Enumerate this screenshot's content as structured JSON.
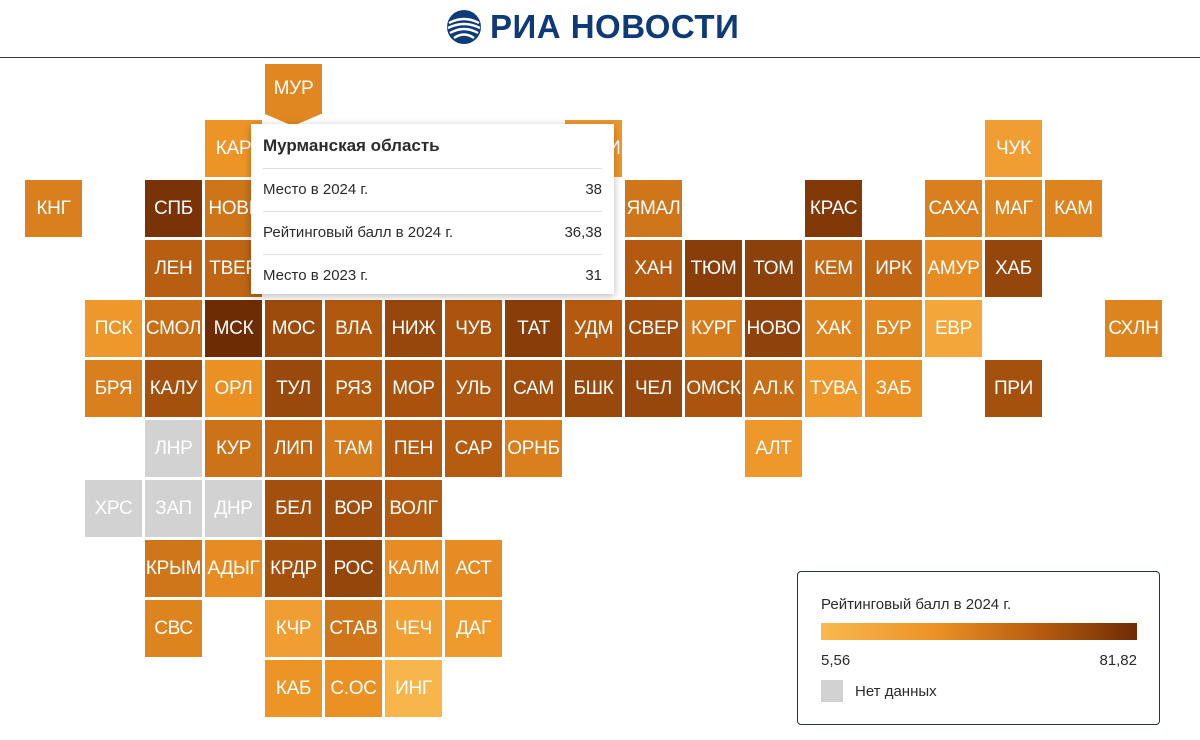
{
  "header": {
    "logo_text": "РИА НОВОСТИ"
  },
  "colors": {
    "scale": [
      "#f8b94f",
      "#ed9325",
      "#b55b10",
      "#6e2c05"
    ],
    "no_data": "#d2d2d2",
    "brand": "#0f3a78"
  },
  "regions": [
    {
      "code": "МУР",
      "score": 36.38,
      "row": 0,
      "col": 4
    },
    {
      "code": "КАР",
      "score": 30,
      "row": 1,
      "col": 3
    },
    {
      "code": "КОМИ",
      "score": 28,
      "row": 1,
      "col": 9
    },
    {
      "code": "ЧУК",
      "score": 24,
      "row": 1,
      "col": 16
    },
    {
      "code": "КНГ",
      "score": 40,
      "row": 2,
      "col": 0
    },
    {
      "code": "СПБ",
      "score": 78,
      "row": 2,
      "col": 2
    },
    {
      "code": "НОВГ",
      "score": 45,
      "row": 2,
      "col": 3
    },
    {
      "code": "ЯМАЛ",
      "score": 44,
      "row": 2,
      "col": 10
    },
    {
      "code": "КРАС",
      "score": 75,
      "row": 2,
      "col": 13
    },
    {
      "code": "САХА",
      "score": 40,
      "row": 2,
      "col": 15
    },
    {
      "code": "МАГ",
      "score": 37,
      "row": 2,
      "col": 16
    },
    {
      "code": "КАМ",
      "score": 38,
      "row": 2,
      "col": 17
    },
    {
      "code": "ЛЕН",
      "score": 55,
      "row": 3,
      "col": 2
    },
    {
      "code": "ТВЕР",
      "score": 52,
      "row": 3,
      "col": 3
    },
    {
      "code": "ХАН",
      "score": 57,
      "row": 3,
      "col": 10
    },
    {
      "code": "ТЮМ",
      "score": 72,
      "row": 3,
      "col": 11
    },
    {
      "code": "ТОМ",
      "score": 71,
      "row": 3,
      "col": 12
    },
    {
      "code": "КЕМ",
      "score": 50,
      "row": 3,
      "col": 13
    },
    {
      "code": "ИРК",
      "score": 52,
      "row": 3,
      "col": 14
    },
    {
      "code": "АМУР",
      "score": 34,
      "row": 3,
      "col": 15
    },
    {
      "code": "ХАБ",
      "score": 68,
      "row": 3,
      "col": 16
    },
    {
      "code": "ПСК",
      "score": 28,
      "row": 4,
      "col": 1
    },
    {
      "code": "СМОЛ",
      "score": 48,
      "row": 4,
      "col": 2
    },
    {
      "code": "МСК",
      "score": 81.82,
      "row": 4,
      "col": 3
    },
    {
      "code": "МОС",
      "score": 65,
      "row": 4,
      "col": 4
    },
    {
      "code": "ВЛА",
      "score": 58,
      "row": 4,
      "col": 5
    },
    {
      "code": "НИЖ",
      "score": 67,
      "row": 4,
      "col": 6
    },
    {
      "code": "ЧУВ",
      "score": 60,
      "row": 4,
      "col": 7
    },
    {
      "code": "ТАТ",
      "score": 72,
      "row": 4,
      "col": 8
    },
    {
      "code": "УДМ",
      "score": 57,
      "row": 4,
      "col": 9
    },
    {
      "code": "СВЕР",
      "score": 64,
      "row": 4,
      "col": 10
    },
    {
      "code": "КУРГ",
      "score": 42,
      "row": 4,
      "col": 11
    },
    {
      "code": "НОВО",
      "score": 70,
      "row": 4,
      "col": 12
    },
    {
      "code": "ХАК",
      "score": 38,
      "row": 4,
      "col": 13
    },
    {
      "code": "БУР",
      "score": 36,
      "row": 4,
      "col": 14
    },
    {
      "code": "ЕВР",
      "score": 18,
      "row": 4,
      "col": 15
    },
    {
      "code": "СХЛН",
      "score": 38,
      "row": 4,
      "col": 18
    },
    {
      "code": "БРЯ",
      "score": 40,
      "row": 5,
      "col": 1
    },
    {
      "code": "КАЛУ",
      "score": 62,
      "row": 5,
      "col": 2
    },
    {
      "code": "ОРЛ",
      "score": 32,
      "row": 5,
      "col": 3
    },
    {
      "code": "ТУЛ",
      "score": 66,
      "row": 5,
      "col": 4
    },
    {
      "code": "РЯЗ",
      "score": 58,
      "row": 5,
      "col": 5
    },
    {
      "code": "МОР",
      "score": 61,
      "row": 5,
      "col": 6
    },
    {
      "code": "УЛЬ",
      "score": 59,
      "row": 5,
      "col": 7
    },
    {
      "code": "САМ",
      "score": 64,
      "row": 5,
      "col": 8
    },
    {
      "code": "БШК",
      "score": 66,
      "row": 5,
      "col": 9
    },
    {
      "code": "ЧЕЛ",
      "score": 67,
      "row": 5,
      "col": 10
    },
    {
      "code": "ОМСК",
      "score": 60,
      "row": 5,
      "col": 11
    },
    {
      "code": "АЛ.К",
      "score": 48,
      "row": 5,
      "col": 12
    },
    {
      "code": "ТУВА",
      "score": 28,
      "row": 5,
      "col": 13
    },
    {
      "code": "ЗАБ",
      "score": 32,
      "row": 5,
      "col": 14
    },
    {
      "code": "ПРИ",
      "score": 62,
      "row": 5,
      "col": 16
    },
    {
      "code": "ЛНР",
      "nodata": true,
      "row": 6,
      "col": 2
    },
    {
      "code": "КУР",
      "score": 46,
      "row": 6,
      "col": 3
    },
    {
      "code": "ЛИП",
      "score": 52,
      "row": 6,
      "col": 4
    },
    {
      "code": "ТАМ",
      "score": 42,
      "row": 6,
      "col": 5
    },
    {
      "code": "ПЕН",
      "score": 57,
      "row": 6,
      "col": 6
    },
    {
      "code": "САР",
      "score": 56,
      "row": 6,
      "col": 7
    },
    {
      "code": "ОРНБ",
      "score": 40,
      "row": 6,
      "col": 8
    },
    {
      "code": "АЛТ",
      "score": 28,
      "row": 6,
      "col": 12
    },
    {
      "code": "ХРС",
      "nodata": true,
      "row": 7,
      "col": 1
    },
    {
      "code": "ЗАП",
      "nodata": true,
      "row": 7,
      "col": 2
    },
    {
      "code": "ДНР",
      "nodata": true,
      "row": 7,
      "col": 3
    },
    {
      "code": "БЕЛ",
      "score": 63,
      "row": 7,
      "col": 4
    },
    {
      "code": "ВОР",
      "score": 64,
      "row": 7,
      "col": 5
    },
    {
      "code": "ВОЛГ",
      "score": 57,
      "row": 7,
      "col": 6
    },
    {
      "code": "КРЫМ",
      "score": 44,
      "row": 8,
      "col": 2
    },
    {
      "code": "АДЫГ",
      "score": 34,
      "row": 8,
      "col": 3
    },
    {
      "code": "КРДР",
      "score": 62,
      "row": 8,
      "col": 4
    },
    {
      "code": "РОС",
      "score": 68,
      "row": 8,
      "col": 5
    },
    {
      "code": "КАЛМ",
      "score": 34,
      "row": 8,
      "col": 6
    },
    {
      "code": "АСТ",
      "score": 34,
      "row": 8,
      "col": 7
    },
    {
      "code": "СВС",
      "score": 38,
      "row": 9,
      "col": 2
    },
    {
      "code": "КЧР",
      "score": 24,
      "row": 9,
      "col": 4
    },
    {
      "code": "СТАВ",
      "score": 44,
      "row": 9,
      "col": 5
    },
    {
      "code": "ЧЕЧ",
      "score": 22,
      "row": 9,
      "col": 6
    },
    {
      "code": "ДАГ",
      "score": 26,
      "row": 9,
      "col": 7
    },
    {
      "code": "КАБ",
      "score": 30,
      "row": 10,
      "col": 4
    },
    {
      "code": "С.ОС",
      "score": 32,
      "row": 10,
      "col": 5
    },
    {
      "code": "ИНГ",
      "score": 8,
      "row": 10,
      "col": 6
    }
  ],
  "tooltip": {
    "title": "Мурманская область",
    "rows": [
      {
        "label": "Место в 2024 г.",
        "value": "38"
      },
      {
        "label": "Рейтинговый балл в 2024 г.",
        "value": "36,38"
      },
      {
        "label": "Место в 2023 г.",
        "value": "31"
      }
    ]
  },
  "legend": {
    "title": "Рейтинговый балл в 2024 г.",
    "min_label": "5,56",
    "max_label": "81,82",
    "min": 5.56,
    "max": 81.82,
    "no_data_label": "Нет данных"
  }
}
